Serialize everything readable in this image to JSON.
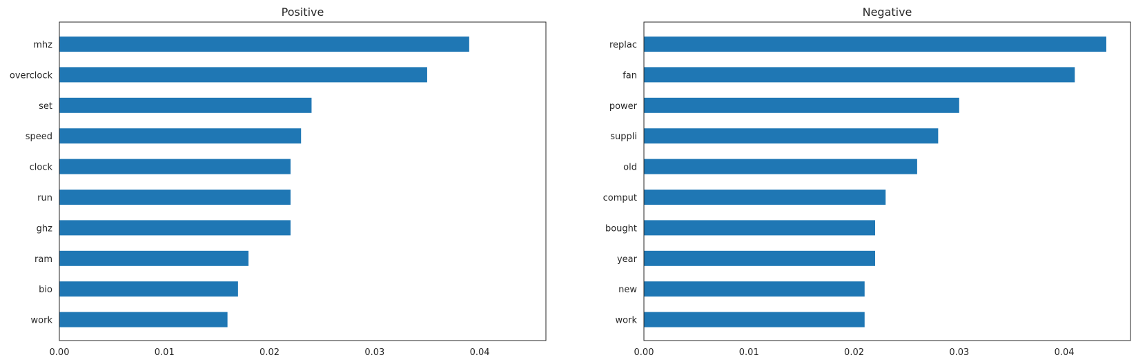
{
  "chart_data": [
    {
      "type": "bar",
      "orientation": "horizontal",
      "title": "Positive",
      "xlabel": "",
      "ylabel": "",
      "categories": [
        "mhz",
        "overclock",
        "set",
        "speed",
        "clock",
        "run",
        "ghz",
        "ram",
        "bio",
        "work"
      ],
      "values": [
        0.039,
        0.035,
        0.024,
        0.023,
        0.022,
        0.022,
        0.022,
        0.018,
        0.017,
        0.016
      ],
      "xlim": [
        0,
        0.0463
      ],
      "xticks": [
        "0.00",
        "0.01",
        "0.02",
        "0.03",
        "0.04"
      ],
      "grid": false,
      "color": "#1f77b4"
    },
    {
      "type": "bar",
      "orientation": "horizontal",
      "title": "Negative",
      "xlabel": "",
      "ylabel": "",
      "categories": [
        "replac",
        "fan",
        "power",
        "suppli",
        "old",
        "comput",
        "bought",
        "year",
        "new",
        "work"
      ],
      "values": [
        0.044,
        0.041,
        0.03,
        0.028,
        0.026,
        0.023,
        0.022,
        0.022,
        0.021,
        0.021
      ],
      "xlim": [
        0,
        0.0463
      ],
      "xticks": [
        "0.00",
        "0.01",
        "0.02",
        "0.03",
        "0.04"
      ],
      "grid": false,
      "color": "#1f77b4"
    }
  ]
}
